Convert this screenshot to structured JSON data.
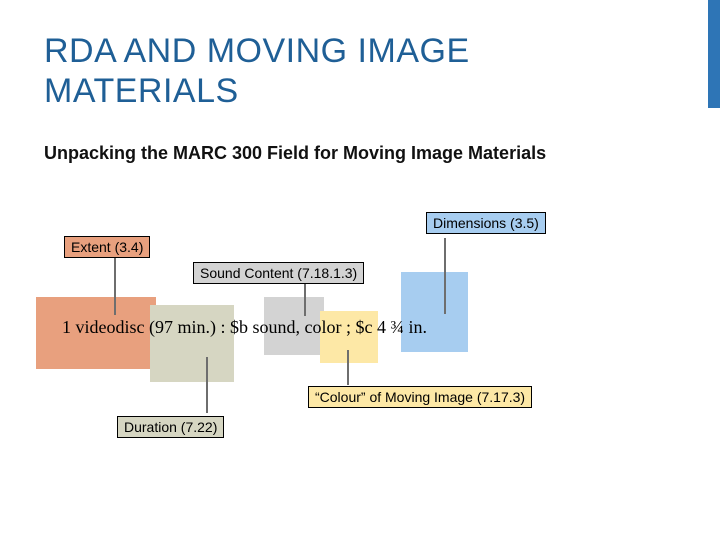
{
  "slide": {
    "title": "RDA AND MOVING IMAGE MATERIALS",
    "subtitle": "Unpacking the MARC 300 Field for Moving Image Materials",
    "marc_field": "1 videodisc (97 min.) : $b sound, color ; $c 4 ¾ in."
  },
  "labels": {
    "dimensions": "Dimensions (3.5)",
    "extent": "Extent (3.4)",
    "sound_content": "Sound Content (7.18.1.3)",
    "colour": "“Colour” of Moving Image (7.17.3)",
    "duration": "Duration (7.22)"
  },
  "colors": {
    "extent": "#e8a07e",
    "duration": "#d6d6c2",
    "sound": "#d3d3d3",
    "colour": "#fde8a6",
    "dimensions": "#a7cdf0",
    "accent": "#2e75b6"
  }
}
